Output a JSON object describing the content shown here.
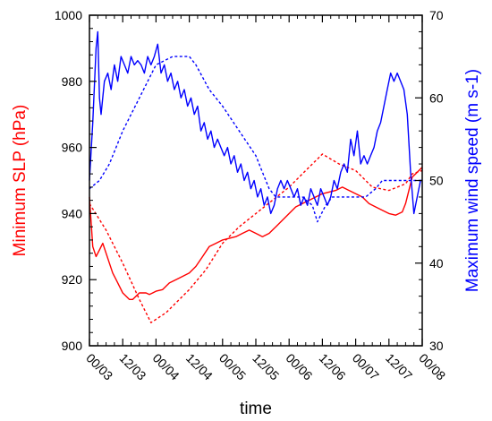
{
  "chart_data": {
    "type": "line",
    "xlabel": "time",
    "x_ticks": [
      "00/03",
      "12/03",
      "00/04",
      "12/04",
      "00/05",
      "12/05",
      "00/06",
      "12/06",
      "00/07",
      "12/07",
      "00/08"
    ],
    "x_range": [
      0,
      10
    ],
    "y_left": {
      "label": "Minimum SLP (hPa)",
      "color": "#ff0000",
      "range": [
        900,
        1000
      ],
      "ticks": [
        900,
        920,
        940,
        960,
        980,
        1000
      ]
    },
    "y_right": {
      "label": "Maximum wind speed (m s-1)",
      "color": "#0000ff",
      "range": [
        30,
        70
      ],
      "ticks": [
        30,
        40,
        50,
        60,
        70
      ]
    },
    "series": [
      {
        "axis": "left",
        "style": "solid",
        "color": "#ff0000",
        "points": [
          [
            0,
            945
          ],
          [
            0.1,
            930
          ],
          [
            0.2,
            927
          ],
          [
            0.3,
            929
          ],
          [
            0.4,
            931
          ],
          [
            0.5,
            928
          ],
          [
            0.6,
            925
          ],
          [
            0.7,
            922
          ],
          [
            0.8,
            920
          ],
          [
            0.9,
            918
          ],
          [
            1.0,
            916
          ],
          [
            1.1,
            915
          ],
          [
            1.2,
            914
          ],
          [
            1.3,
            914
          ],
          [
            1.4,
            915
          ],
          [
            1.5,
            916
          ],
          [
            1.6,
            916
          ],
          [
            1.7,
            916
          ],
          [
            1.8,
            915.5
          ],
          [
            1.9,
            916
          ],
          [
            2.0,
            916.5
          ],
          [
            2.2,
            917
          ],
          [
            2.4,
            919
          ],
          [
            2.6,
            920
          ],
          [
            2.8,
            921
          ],
          [
            3.0,
            922
          ],
          [
            3.2,
            924
          ],
          [
            3.4,
            927
          ],
          [
            3.6,
            930
          ],
          [
            3.8,
            931
          ],
          [
            4.0,
            932
          ],
          [
            4.2,
            932.5
          ],
          [
            4.4,
            933
          ],
          [
            4.6,
            934
          ],
          [
            4.8,
            935
          ],
          [
            5.0,
            934
          ],
          [
            5.2,
            933
          ],
          [
            5.4,
            934
          ],
          [
            5.6,
            936
          ],
          [
            5.8,
            938
          ],
          [
            6.0,
            940
          ],
          [
            6.2,
            942
          ],
          [
            6.4,
            943
          ],
          [
            6.6,
            944
          ],
          [
            6.8,
            945
          ],
          [
            7.0,
            946
          ],
          [
            7.2,
            946.5
          ],
          [
            7.4,
            947
          ],
          [
            7.6,
            948
          ],
          [
            7.8,
            947
          ],
          [
            8.0,
            946
          ],
          [
            8.2,
            945
          ],
          [
            8.4,
            943
          ],
          [
            8.6,
            942
          ],
          [
            8.8,
            941
          ],
          [
            9.0,
            940
          ],
          [
            9.2,
            939.5
          ],
          [
            9.4,
            940.5
          ],
          [
            9.5,
            943
          ],
          [
            9.6,
            947
          ],
          [
            9.7,
            951
          ],
          [
            9.8,
            952
          ],
          [
            9.9,
            953
          ],
          [
            10.0,
            954
          ]
        ]
      },
      {
        "axis": "left",
        "style": "dashed",
        "color": "#ff0000",
        "points": [
          [
            0,
            943
          ],
          [
            0.5,
            935
          ],
          [
            1.0,
            925
          ],
          [
            1.5,
            914
          ],
          [
            1.85,
            907
          ],
          [
            2.3,
            910
          ],
          [
            3.0,
            917
          ],
          [
            3.5,
            923
          ],
          [
            4.0,
            931
          ],
          [
            4.5,
            936
          ],
          [
            5.0,
            940
          ],
          [
            5.5,
            944
          ],
          [
            6.0,
            948
          ],
          [
            6.5,
            953
          ],
          [
            7.0,
            958
          ],
          [
            7.5,
            955
          ],
          [
            8.0,
            953
          ],
          [
            8.5,
            948
          ],
          [
            9.0,
            947
          ],
          [
            9.5,
            949
          ],
          [
            9.7,
            952
          ],
          [
            10.0,
            953
          ]
        ]
      },
      {
        "axis": "right",
        "style": "dashed",
        "color": "#0000ff",
        "points": [
          [
            0,
            49
          ],
          [
            0.3,
            50
          ],
          [
            0.6,
            52
          ],
          [
            1.0,
            56
          ],
          [
            1.5,
            60
          ],
          [
            2.0,
            64
          ],
          [
            2.5,
            65
          ],
          [
            3.0,
            65
          ],
          [
            3.2,
            64
          ],
          [
            3.6,
            61
          ],
          [
            4.0,
            59
          ],
          [
            4.5,
            56
          ],
          [
            5.0,
            53
          ],
          [
            5.2,
            51
          ],
          [
            5.4,
            49
          ],
          [
            5.6,
            48
          ],
          [
            6.0,
            48
          ],
          [
            6.4,
            48
          ],
          [
            6.7,
            47
          ],
          [
            6.85,
            45
          ],
          [
            7.1,
            47
          ],
          [
            7.3,
            48
          ],
          [
            7.6,
            48
          ],
          [
            8.0,
            48
          ],
          [
            8.3,
            48
          ],
          [
            8.6,
            49
          ],
          [
            8.8,
            50
          ],
          [
            10.0,
            50
          ]
        ]
      },
      {
        "axis": "right",
        "style": "solid",
        "color": "#0000ff",
        "points": [
          [
            0,
            50
          ],
          [
            0.1,
            57
          ],
          [
            0.2,
            66
          ],
          [
            0.25,
            68
          ],
          [
            0.3,
            60
          ],
          [
            0.35,
            58
          ],
          [
            0.45,
            62
          ],
          [
            0.55,
            63
          ],
          [
            0.65,
            61
          ],
          [
            0.75,
            64
          ],
          [
            0.85,
            62
          ],
          [
            0.95,
            65
          ],
          [
            1.05,
            64
          ],
          [
            1.15,
            63
          ],
          [
            1.25,
            65
          ],
          [
            1.35,
            64
          ],
          [
            1.45,
            64.5
          ],
          [
            1.55,
            64
          ],
          [
            1.65,
            63
          ],
          [
            1.75,
            65
          ],
          [
            1.85,
            64
          ],
          [
            1.95,
            65
          ],
          [
            2.05,
            66.5
          ],
          [
            2.15,
            63
          ],
          [
            2.25,
            64
          ],
          [
            2.35,
            62
          ],
          [
            2.45,
            63
          ],
          [
            2.55,
            61
          ],
          [
            2.65,
            62
          ],
          [
            2.75,
            60
          ],
          [
            2.85,
            61
          ],
          [
            2.95,
            59
          ],
          [
            3.05,
            60
          ],
          [
            3.15,
            58
          ],
          [
            3.25,
            59
          ],
          [
            3.35,
            56
          ],
          [
            3.45,
            57
          ],
          [
            3.55,
            55
          ],
          [
            3.65,
            56
          ],
          [
            3.75,
            54
          ],
          [
            3.85,
            55
          ],
          [
            3.95,
            54
          ],
          [
            4.05,
            53
          ],
          [
            4.15,
            54
          ],
          [
            4.25,
            52
          ],
          [
            4.35,
            53
          ],
          [
            4.45,
            51
          ],
          [
            4.55,
            52
          ],
          [
            4.65,
            50
          ],
          [
            4.75,
            51
          ],
          [
            4.85,
            49
          ],
          [
            4.95,
            50
          ],
          [
            5.05,
            48
          ],
          [
            5.15,
            49
          ],
          [
            5.25,
            47
          ],
          [
            5.35,
            48
          ],
          [
            5.45,
            46
          ],
          [
            5.55,
            47
          ],
          [
            5.65,
            49
          ],
          [
            5.75,
            50
          ],
          [
            5.85,
            49
          ],
          [
            5.95,
            50
          ],
          [
            6.05,
            49
          ],
          [
            6.15,
            48
          ],
          [
            6.25,
            49
          ],
          [
            6.35,
            47
          ],
          [
            6.45,
            48
          ],
          [
            6.55,
            47
          ],
          [
            6.65,
            49
          ],
          [
            6.75,
            48
          ],
          [
            6.85,
            47
          ],
          [
            6.95,
            49
          ],
          [
            7.05,
            48
          ],
          [
            7.15,
            47
          ],
          [
            7.25,
            48
          ],
          [
            7.35,
            50
          ],
          [
            7.45,
            49
          ],
          [
            7.55,
            51
          ],
          [
            7.65,
            52
          ],
          [
            7.75,
            51
          ],
          [
            7.85,
            55
          ],
          [
            7.95,
            53
          ],
          [
            8.05,
            56
          ],
          [
            8.15,
            52
          ],
          [
            8.25,
            53
          ],
          [
            8.35,
            52
          ],
          [
            8.45,
            53
          ],
          [
            8.55,
            54
          ],
          [
            8.65,
            56
          ],
          [
            8.75,
            57
          ],
          [
            8.85,
            59
          ],
          [
            8.95,
            61
          ],
          [
            9.05,
            63
          ],
          [
            9.15,
            62
          ],
          [
            9.25,
            63
          ],
          [
            9.35,
            62
          ],
          [
            9.45,
            61
          ],
          [
            9.55,
            58
          ],
          [
            9.65,
            51
          ],
          [
            9.75,
            46
          ],
          [
            9.85,
            48
          ],
          [
            9.95,
            50
          ],
          [
            10.0,
            50
          ]
        ]
      }
    ]
  }
}
